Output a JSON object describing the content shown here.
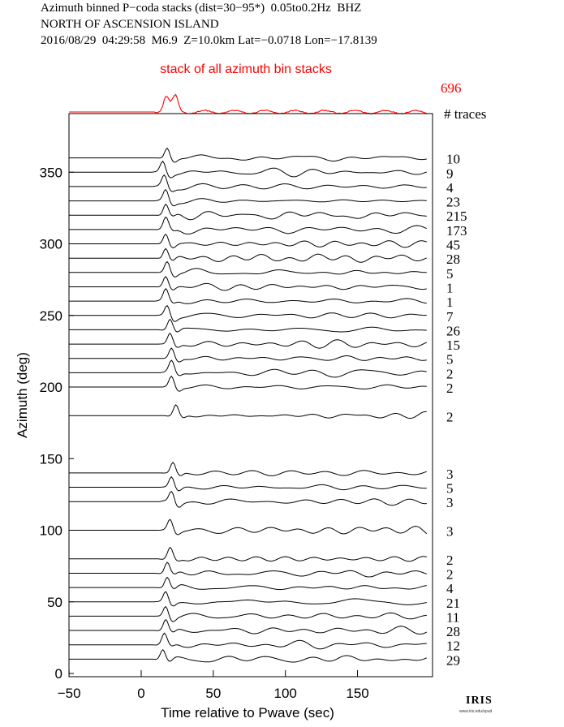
{
  "header": {
    "line1": "Azimuth binned P−coda stacks (dist=30−95*)  0.05to0.2Hz  BHZ",
    "line2": "NORTH OF ASCENSION ISLAND",
    "line3": "2016/08/29  04:29:58  M6.9  Z=10.0km Lat=−0.0718 Lon=−17.8139"
  },
  "logo": {
    "text": "IRIS",
    "sub": "www.iris.edu/spud"
  },
  "chart_data": {
    "type": "line",
    "xlabel": "Time relative to Pwave (sec)",
    "ylabel": "Azimuth (deg)",
    "xlim": [
      -50,
      200
    ],
    "ylim": [
      0,
      390
    ],
    "xticks": [
      -50,
      0,
      50,
      100,
      150
    ],
    "yticks": [
      0,
      50,
      100,
      150,
      200,
      250,
      300,
      350
    ],
    "grid": false,
    "colors": {
      "traces": "#000000",
      "stack": "#ff0000"
    },
    "stack": {
      "label": "stack of all azimuth bin stacks",
      "count": "696",
      "count_header": "# traces",
      "peak_time": 21
    },
    "traces": [
      {
        "azimuth": 360,
        "count": "10",
        "peak_time": 18
      },
      {
        "azimuth": 350,
        "count": "9",
        "peak_time": 15
      },
      {
        "azimuth": 340,
        "count": "4",
        "peak_time": 16
      },
      {
        "azimuth": 330,
        "count": "23",
        "peak_time": 17
      },
      {
        "azimuth": 320,
        "count": "215",
        "peak_time": 17
      },
      {
        "azimuth": 310,
        "count": "173",
        "peak_time": 17
      },
      {
        "azimuth": 300,
        "count": "45",
        "peak_time": 17
      },
      {
        "azimuth": 290,
        "count": "28",
        "peak_time": 17
      },
      {
        "azimuth": 280,
        "count": "5",
        "peak_time": 18
      },
      {
        "azimuth": 270,
        "count": "1",
        "peak_time": 17
      },
      {
        "azimuth": 260,
        "count": "1",
        "peak_time": 17
      },
      {
        "azimuth": 250,
        "count": "7",
        "peak_time": 18
      },
      {
        "azimuth": 240,
        "count": "26",
        "peak_time": 20
      },
      {
        "azimuth": 230,
        "count": "15",
        "peak_time": 20
      },
      {
        "azimuth": 220,
        "count": "5",
        "peak_time": 21
      },
      {
        "azimuth": 210,
        "count": "2",
        "peak_time": 21
      },
      {
        "azimuth": 200,
        "count": "2",
        "peak_time": 21
      },
      {
        "azimuth": 180,
        "count": "2",
        "peak_time": 24
      },
      {
        "azimuth": 140,
        "count": "3",
        "peak_time": 22
      },
      {
        "azimuth": 130,
        "count": "5",
        "peak_time": 21
      },
      {
        "azimuth": 120,
        "count": "3",
        "peak_time": 21
      },
      {
        "azimuth": 100,
        "count": "3",
        "peak_time": 20
      },
      {
        "azimuth": 80,
        "count": "2",
        "peak_time": 20
      },
      {
        "azimuth": 70,
        "count": "2",
        "peak_time": 18
      },
      {
        "azimuth": 60,
        "count": "4",
        "peak_time": 18
      },
      {
        "azimuth": 50,
        "count": "21",
        "peak_time": 17
      },
      {
        "azimuth": 40,
        "count": "11",
        "peak_time": 17
      },
      {
        "azimuth": 30,
        "count": "28",
        "peak_time": 17
      },
      {
        "azimuth": 20,
        "count": "12",
        "peak_time": 16
      },
      {
        "azimuth": 10,
        "count": "29",
        "peak_time": 15
      }
    ]
  }
}
